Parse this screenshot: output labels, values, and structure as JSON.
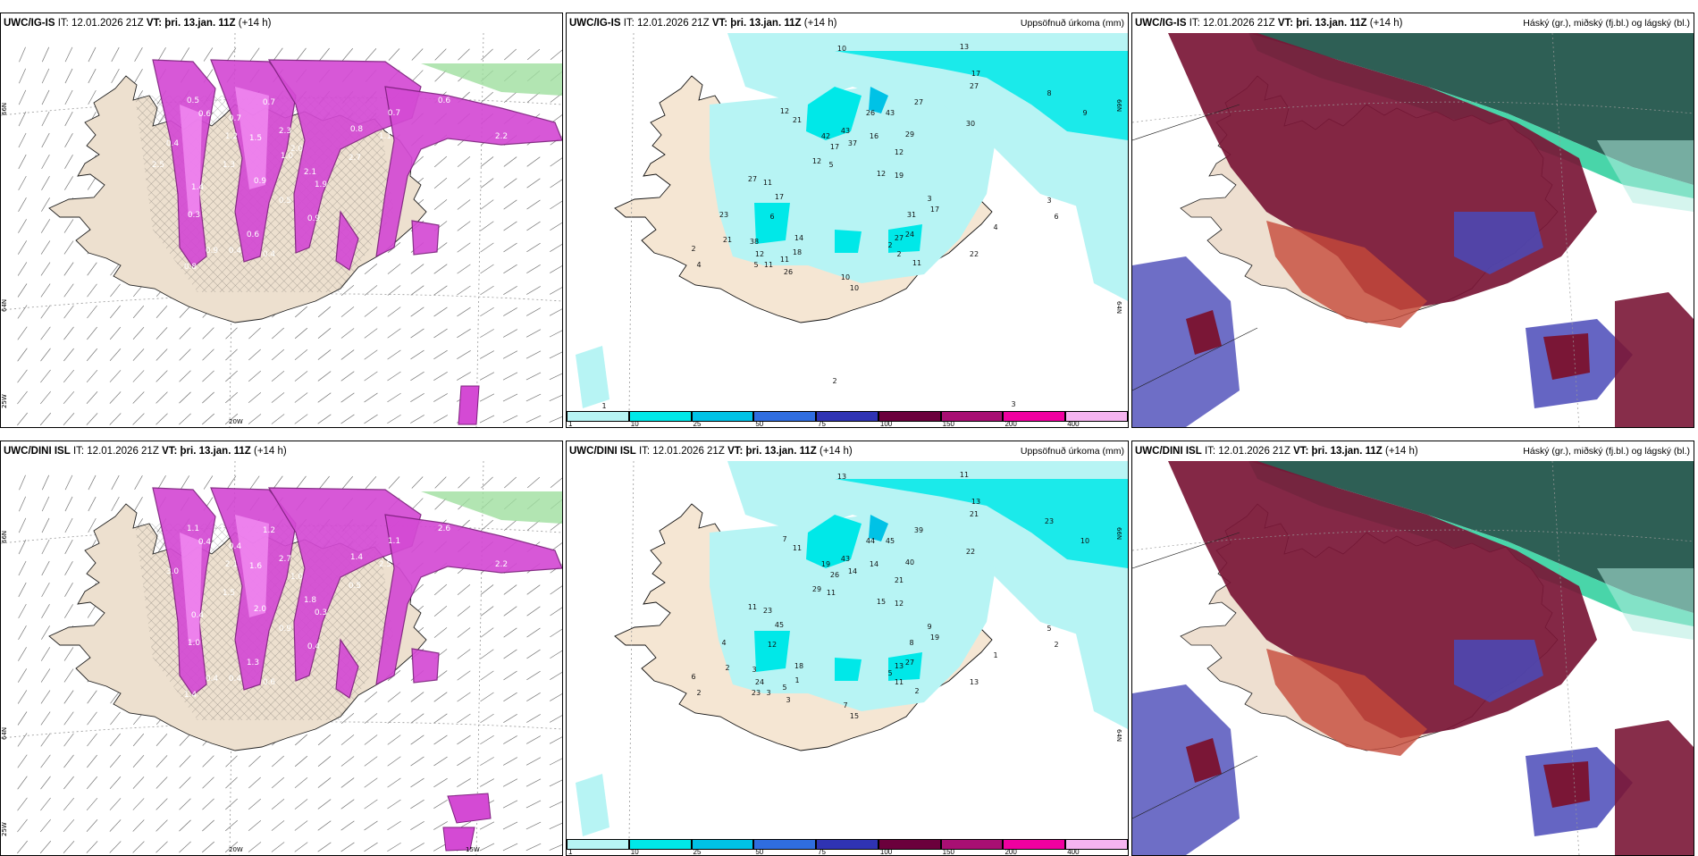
{
  "panels": [
    {
      "model": "UWC/IG-IS",
      "it": "IT: 12.01.2026 21Z",
      "vt_label": "VT:",
      "vt": "þri. 13.jan. 11Z",
      "lead": "(+14 h)",
      "right": ""
    },
    {
      "model": "UWC/IG-IS",
      "it": "IT: 12.01.2026 21Z",
      "vt_label": "VT:",
      "vt": "þri. 13.jan. 11Z",
      "lead": "(+14 h)",
      "right": "Uppsöfnuð úrkoma (mm)"
    },
    {
      "model": "UWC/IG-IS",
      "it": "IT: 12.01.2026 21Z",
      "vt_label": "VT:",
      "vt": "þri. 13.jan. 11Z",
      "lead": "(+14 h)",
      "right": "Háský (gr.), miðský (fj.bl.) og lágský (bl.)"
    },
    {
      "model": "UWC/DINI ISL",
      "it": "IT: 12.01.2026 21Z",
      "vt_label": "VT:",
      "vt": "þri. 13.jan. 11Z",
      "lead": "(+14 h)",
      "right": ""
    },
    {
      "model": "UWC/DINI ISL",
      "it": "IT: 12.01.2026 21Z",
      "vt_label": "VT:",
      "vt": "þri. 13.jan. 11Z",
      "lead": "(+14 h)",
      "right": "Uppsöfnuð úrkoma (mm)"
    },
    {
      "model": "UWC/DINI ISL",
      "it": "IT: 12.01.2026 21Z",
      "vt_label": "VT:",
      "vt": "þri. 13.jan. 11Z",
      "lead": "(+14 h)",
      "right": "Háský (gr.), miðský (fj.bl.) og lágský (bl.)"
    }
  ],
  "colorbar": {
    "ticks": [
      "1",
      "10",
      "25",
      "50",
      "75",
      "100",
      "150",
      "200",
      "400"
    ],
    "colors": [
      "#b7f4f4",
      "#00e8e8",
      "#00c2e6",
      "#2f6de0",
      "#2f33b3",
      "#6b003c",
      "#a80f73",
      "#f000a0",
      "#f5b4f0"
    ]
  },
  "snow_panels": [
    {
      "lat_labels": [
        "66N",
        "64N"
      ],
      "lon_labels": [
        "25W",
        "20W"
      ],
      "values": [
        "0.5",
        "0.6",
        "0.7",
        "0.7",
        "0.4",
        "1.2",
        "1.5",
        "2.3",
        "2.0",
        "2.1",
        "1.9",
        "1.4",
        "0.3",
        "1.3",
        "0.9",
        "0.5",
        "0.8",
        "1.1",
        "2.7",
        "0.9",
        "0.6",
        "0.4",
        "0.4",
        "0.8",
        "2.2",
        "1.1",
        "0.9",
        "1.4",
        "0.7",
        "0.6",
        "2.5",
        "1.0"
      ]
    },
    {
      "lat_labels": [
        "66N",
        "64N"
      ],
      "lon_labels": [
        "25W",
        "20W",
        "15W"
      ],
      "values": [
        "1.1",
        "0.4",
        "0.4",
        "1.2",
        "3.0",
        "2.1",
        "1.6",
        "2.7",
        "1.0",
        "1.8",
        "0.3",
        "0.4",
        "1.0",
        "1.5",
        "2.0",
        "0.9",
        "1.4",
        "2.5",
        "0.5",
        "0.4",
        "1.3",
        "0.6",
        "0.4",
        "1.4",
        "2.2",
        "1.2",
        "0.4",
        "1.8",
        "1.1",
        "2.6"
      ]
    }
  ],
  "precip_panels": [
    {
      "lat_labels": [
        "66N",
        "64N"
      ],
      "values": [
        "10",
        "13",
        "17",
        "27",
        "8",
        "9",
        "12",
        "21",
        "42",
        "43",
        "26",
        "43",
        "29",
        "27",
        "12",
        "17",
        "37",
        "16",
        "12",
        "17",
        "27",
        "11",
        "5",
        "12",
        "19",
        "30",
        "31",
        "17",
        "3",
        "6",
        "12",
        "5",
        "11",
        "24",
        "2",
        "2",
        "10",
        "14",
        "10",
        "27",
        "22",
        "23",
        "21",
        "38",
        "26",
        "18",
        "11",
        "4",
        "6",
        "3",
        "11",
        "2",
        "4",
        "1",
        "2",
        "3"
      ]
    },
    {
      "lat_labels": [
        "66N",
        "64N"
      ],
      "values": [
        "13",
        "11",
        "13",
        "21",
        "23",
        "10",
        "7",
        "11",
        "19",
        "43",
        "44",
        "45",
        "40",
        "39",
        "29",
        "26",
        "14",
        "14",
        "21",
        "45",
        "11",
        "23",
        "11",
        "15",
        "12",
        "22",
        "8",
        "19",
        "9",
        "12",
        "24",
        "23",
        "5",
        "27",
        "5",
        "11",
        "7",
        "18",
        "15",
        "13",
        "13",
        "4",
        "2",
        "3",
        "3",
        "1",
        "2",
        "1",
        "2",
        "5",
        "3",
        "6",
        "2"
      ]
    }
  ]
}
